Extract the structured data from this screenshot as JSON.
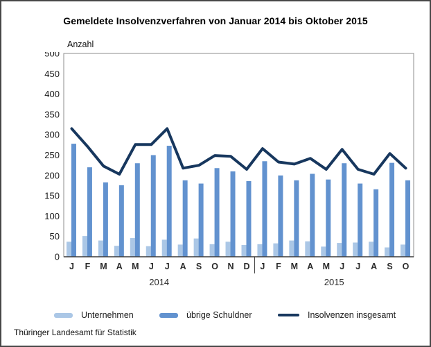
{
  "chart": {
    "title": "Gemeldete Insolvenzverfahren von Januar 2014 bis Oktober 2015",
    "ylabel": "Anzahl"
  },
  "legend": {
    "items": [
      {
        "label": "Unternehmen",
        "color": "#abc7e6",
        "type": "bar"
      },
      {
        "label": "übrige Schuldner",
        "color": "#6292cf",
        "type": "bar"
      },
      {
        "label": "Insolvenzen insgesamt",
        "color": "#17375e",
        "type": "line"
      }
    ]
  },
  "footer": {
    "source": "Thüringer Landesamt für Statistik"
  },
  "chart_data": {
    "type": "bar",
    "title": "Gemeldete Insolvenzverfahren von Januar 2014 bis Oktober 2015",
    "xlabel": "",
    "ylabel": "Anzahl",
    "ylim": [
      0,
      500
    ],
    "y_tick_step": 50,
    "grid": false,
    "legend_position": "bottom",
    "categories": [
      "J",
      "F",
      "M",
      "A",
      "M",
      "J",
      "J",
      "A",
      "S",
      "O",
      "N",
      "D",
      "J",
      "F",
      "M",
      "A",
      "M",
      "J",
      "J",
      "A",
      "S",
      "O"
    ],
    "year_groups": [
      {
        "label": "2014",
        "from": 0,
        "to": 11
      },
      {
        "label": "2015",
        "from": 12,
        "to": 21
      }
    ],
    "series": [
      {
        "name": "Unternehmen",
        "type": "bar",
        "color": "#abc7e6",
        "values": [
          37,
          51,
          40,
          27,
          46,
          26,
          42,
          30,
          45,
          31,
          37,
          29,
          31,
          33,
          40,
          38,
          25,
          34,
          35,
          37,
          23,
          30
        ]
      },
      {
        "name": "übrige Schuldner",
        "type": "bar",
        "color": "#6292cf",
        "values": [
          278,
          220,
          183,
          176,
          230,
          250,
          273,
          188,
          180,
          218,
          210,
          186,
          235,
          200,
          188,
          204,
          190,
          230,
          180,
          166,
          231,
          188
        ]
      },
      {
        "name": "Insolvenzen insgesamt",
        "type": "line",
        "color": "#17375e",
        "values": [
          315,
          271,
          223,
          203,
          276,
          276,
          315,
          218,
          225,
          249,
          247,
          215,
          266,
          233,
          228,
          242,
          215,
          264,
          215,
          203,
          254,
          218
        ]
      }
    ],
    "axis_colors": {
      "plot_border": "#8c8c8c",
      "axis_line": "#3c3c3c",
      "tick_text": "#1a1a1a",
      "month_text": "#2b2b2b"
    }
  }
}
